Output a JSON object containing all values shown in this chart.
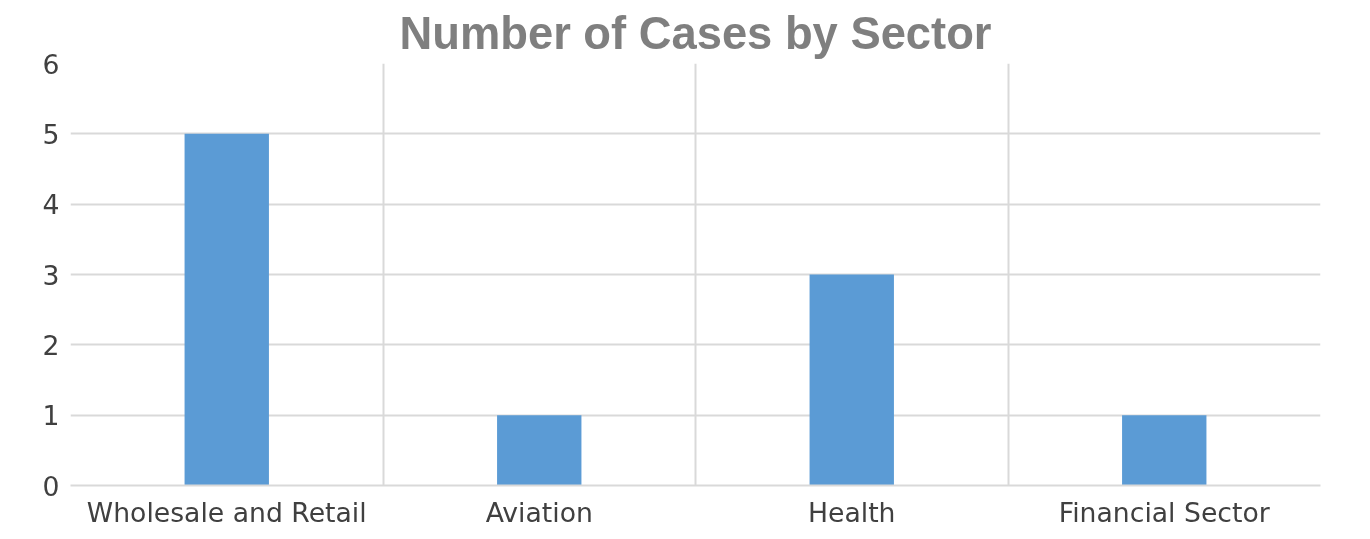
{
  "chart_data": {
    "type": "bar",
    "title": "Number of Cases by Sector",
    "categories": [
      "Wholesale and Retail",
      "Aviation",
      "Health",
      "Financial Sector"
    ],
    "values": [
      5,
      1,
      3,
      1
    ],
    "color": "#5b9bd5",
    "ylim": [
      0,
      6
    ],
    "yticks": [
      0,
      1,
      2,
      3,
      4,
      5,
      6
    ],
    "grid": true
  }
}
